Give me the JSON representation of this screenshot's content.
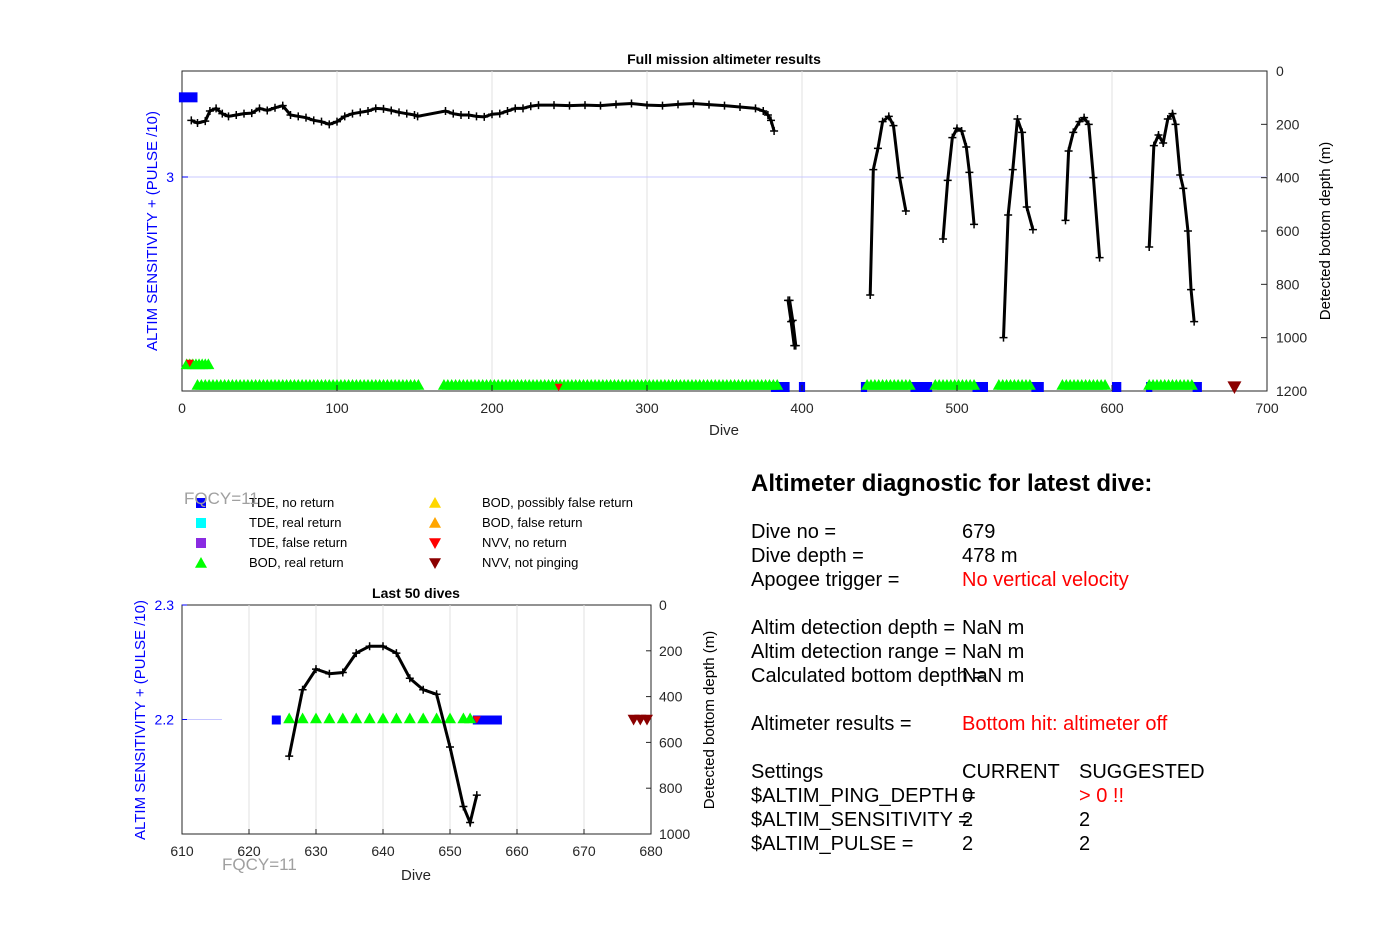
{
  "top_chart": {
    "title": "Full mission altimeter results",
    "xlabel": "Dive",
    "ylabel_left": "ALTIM SENSITIVITY + (PULSE /10)",
    "ylabel_right": "Detected bottom depth (m)",
    "xticks": [
      "0",
      "100",
      "200",
      "300",
      "400",
      "500",
      "600",
      "700"
    ],
    "left_ticks": [
      "3"
    ],
    "right_ticks": [
      "0",
      "200",
      "400",
      "600",
      "800",
      "1000",
      "1200"
    ]
  },
  "bottom_chart": {
    "title": "Last 50 dives",
    "xlabel": "Dive",
    "ylabel_left": "ALTIM SENSITIVITY + (PULSE /10)",
    "ylabel_right": "Detected bottom depth (m)",
    "xticks": [
      "610",
      "620",
      "630",
      "640",
      "650",
      "660",
      "670",
      "680"
    ],
    "left_ticks": [
      "2.3",
      "2.2"
    ],
    "right_ticks": [
      "0",
      "200",
      "400",
      "600",
      "800",
      "1000"
    ],
    "fqcy_top": "FQCY=11",
    "fqcy_bottom": "FQCY=11"
  },
  "legend": [
    {
      "label": "TDE, no return",
      "color": "#0000ff",
      "shape": "square"
    },
    {
      "label": "TDE, real return",
      "color": "#00ffff",
      "shape": "square"
    },
    {
      "label": "TDE, false return",
      "color": "#8a2be2",
      "shape": "square"
    },
    {
      "label": "BOD, real return",
      "color": "#00ff00",
      "shape": "triangle-up"
    },
    {
      "label": "BOD, possibly false return",
      "color": "#ffd700",
      "shape": "triangle-up"
    },
    {
      "label": "BOD, false return",
      "color": "#ffa500",
      "shape": "triangle-up"
    },
    {
      "label": "NVV, no return",
      "color": "#ff0000",
      "shape": "triangle-down"
    },
    {
      "label": "NVV, not pinging",
      "color": "#8b0000",
      "shape": "triangle-down"
    }
  ],
  "diagnostic": {
    "title": "Altimeter diagnostic for latest dive:",
    "dive_no_label": "Dive no =",
    "dive_no": "679",
    "dive_depth_label": "Dive depth =",
    "dive_depth": "478 m",
    "apogee_label": "Apogee trigger =",
    "apogee": "No vertical velocity",
    "det_depth_label": "Altim detection depth =",
    "det_depth": "NaN m",
    "det_range_label": "Altim detection range =",
    "det_range": "NaN m",
    "calc_depth_label": "Calculated bottom depth =",
    "calc_depth": "NaN m",
    "results_label": "Altimeter results =",
    "results": "Bottom hit: altimeter off",
    "settings_label": "Settings",
    "current_label": "CURRENT",
    "suggested_label": "SUGGESTED",
    "ping_depth_label": "$ALTIM_PING_DEPTH =",
    "ping_depth_current": "0",
    "ping_depth_suggested": "> 0 !!",
    "sensitivity_label": "$ALTIM_SENSITIVITY =",
    "sensitivity_current": "2",
    "sensitivity_suggested": "2",
    "pulse_label": "$ALTIM_PULSE =",
    "pulse_current": "2",
    "pulse_suggested": "2"
  },
  "chart_data": [
    {
      "type": "line",
      "title": "Full mission altimeter results",
      "xlabel": "Dive",
      "ylabel": "Detected bottom depth (m)",
      "xlim": [
        0,
        700
      ],
      "ylim_right": [
        0,
        1200
      ],
      "y_reversed": true,
      "series": [
        {
          "name": "",
          "x": [
            6,
            10,
            15,
            18,
            22,
            26,
            30,
            35,
            40,
            45,
            50,
            55,
            60,
            65,
            70,
            75,
            80,
            85,
            90,
            95,
            100,
            105,
            110,
            115,
            120,
            125,
            130,
            135,
            140,
            145,
            150,
            152,
            170,
            175,
            180,
            185,
            190,
            195,
            200,
            205,
            210,
            215,
            220,
            225,
            230,
            240,
            250,
            260,
            270,
            280,
            290,
            300,
            310,
            320,
            330,
            340,
            350,
            360,
            370,
            375,
            378,
            380,
            382
          ],
          "y": [
            185,
            195,
            188,
            150,
            140,
            160,
            170,
            165,
            160,
            158,
            140,
            148,
            138,
            130,
            165,
            170,
            175,
            185,
            190,
            200,
            190,
            170,
            160,
            155,
            150,
            140,
            142,
            148,
            155,
            160,
            165,
            170,
            150,
            160,
            165,
            165,
            170,
            172,
            162,
            160,
            150,
            140,
            140,
            132,
            128,
            128,
            130,
            128,
            130,
            125,
            122,
            128,
            130,
            125,
            122,
            126,
            130,
            135,
            140,
            150,
            165,
            185,
            225
          ]
        },
        {
          "name": "",
          "x": [
            392,
            394,
            396
          ],
          "y": [
            860,
            935,
            1030
          ]
        },
        {
          "name": "",
          "x": [
            444,
            446,
            449,
            452,
            456,
            459,
            463,
            467
          ],
          "y": [
            840,
            370,
            290,
            190,
            170,
            205,
            400,
            525
          ]
        },
        {
          "name": "",
          "x": [
            491,
            494,
            497,
            500,
            503,
            506,
            508,
            511
          ],
          "y": [
            630,
            410,
            250,
            215,
            225,
            285,
            380,
            575
          ]
        },
        {
          "name": "",
          "x": [
            530,
            533,
            536,
            539,
            542,
            545,
            549
          ],
          "y": [
            1000,
            540,
            370,
            180,
            230,
            510,
            595
          ]
        },
        {
          "name": "",
          "x": [
            570,
            572,
            575,
            579,
            582,
            585,
            588,
            592
          ],
          "y": [
            560,
            300,
            230,
            190,
            175,
            200,
            400,
            700
          ]
        },
        {
          "name": "",
          "x": [
            624,
            627,
            630,
            633,
            636,
            639,
            641,
            644,
            646,
            649,
            651,
            653
          ],
          "y": [
            660,
            280,
            240,
            270,
            180,
            160,
            200,
            390,
            440,
            600,
            820,
            940
          ]
        },
        {
          "name": "",
          "x": [
            391,
            393,
            395
          ],
          "y": [
            860,
            940,
            1030
          ]
        }
      ],
      "markers": {
        "bod_real_return_ranges": [
          [
            10,
            154
          ],
          [
            169,
            385
          ],
          [
            442,
            470
          ],
          [
            486,
            512
          ],
          [
            527,
            548
          ],
          [
            568,
            596
          ],
          [
            624,
            653
          ]
        ],
        "tde_no_return_ranges": [
          [
            380,
            392
          ],
          [
            398,
            402
          ],
          [
            438,
            442
          ],
          [
            470,
            484
          ],
          [
            510,
            520
          ],
          [
            548,
            556
          ],
          [
            600,
            606
          ],
          [
            622,
            626
          ],
          [
            652,
            658
          ]
        ],
        "nvv_not_pinging_x": [
          679
        ],
        "nvv_no_return_x": [
          5,
          243
        ]
      }
    },
    {
      "type": "line",
      "title": "Last 50 dives",
      "xlabel": "Dive",
      "ylabel": "Detected bottom depth (m)",
      "xlim": [
        610,
        680
      ],
      "ylim_right": [
        0,
        1000
      ],
      "y_reversed": true,
      "series": [
        {
          "name": "",
          "x": [
            626,
            628,
            630,
            632,
            634,
            636,
            638,
            640,
            642,
            644,
            646,
            648,
            650,
            652,
            653,
            654
          ],
          "y": [
            660,
            370,
            280,
            300,
            295,
            210,
            180,
            180,
            210,
            320,
            370,
            390,
            620,
            880,
            950,
            830
          ]
        }
      ],
      "markers": {
        "bod_real_return_x": [
          626,
          628,
          630,
          632,
          634,
          636,
          638,
          640,
          642,
          644,
          646,
          648,
          650,
          652,
          653
        ],
        "tde_no_return_x": [
          624,
          654,
          655,
          656,
          657
        ],
        "nvv_not_pinging_x": [
          678,
          679,
          680
        ],
        "nvv_no_return_x": [
          654
        ]
      },
      "left_axis_ylim": [
        2.1,
        2.3
      ]
    }
  ]
}
